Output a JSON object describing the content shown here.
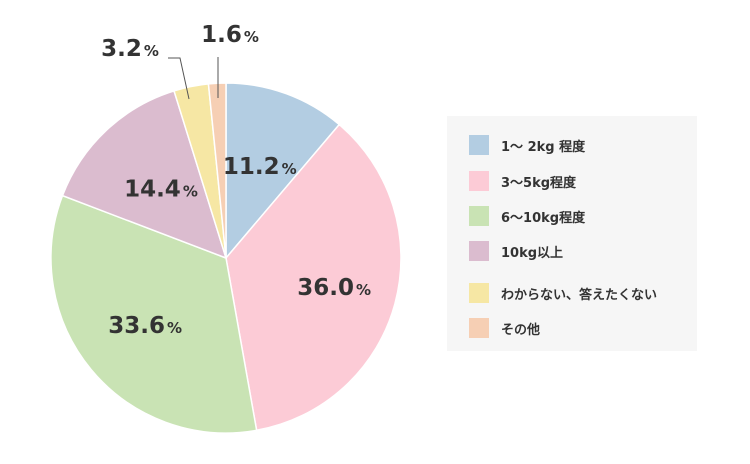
{
  "chart_data": {
    "type": "pie",
    "categories": [
      "1～ 2kg 程度",
      "3～5kg程度",
      "6～10kg程度",
      "10kg以上",
      "わからない、答えたくない",
      "その他"
    ],
    "values": [
      11.2,
      36.0,
      33.6,
      14.4,
      3.2,
      1.6
    ],
    "value_labels": [
      "11.2",
      "36.0",
      "33.6",
      "14.4",
      "3.2",
      "1.6"
    ],
    "unit": "%",
    "colors": [
      "#b3cde2",
      "#fccbd6",
      "#c9e3b4",
      "#dbbccf",
      "#f6e7a4",
      "#f6cfb4"
    ],
    "start_angle_deg": 0,
    "direction": "clockwise",
    "legend_position": "right",
    "title": ""
  }
}
